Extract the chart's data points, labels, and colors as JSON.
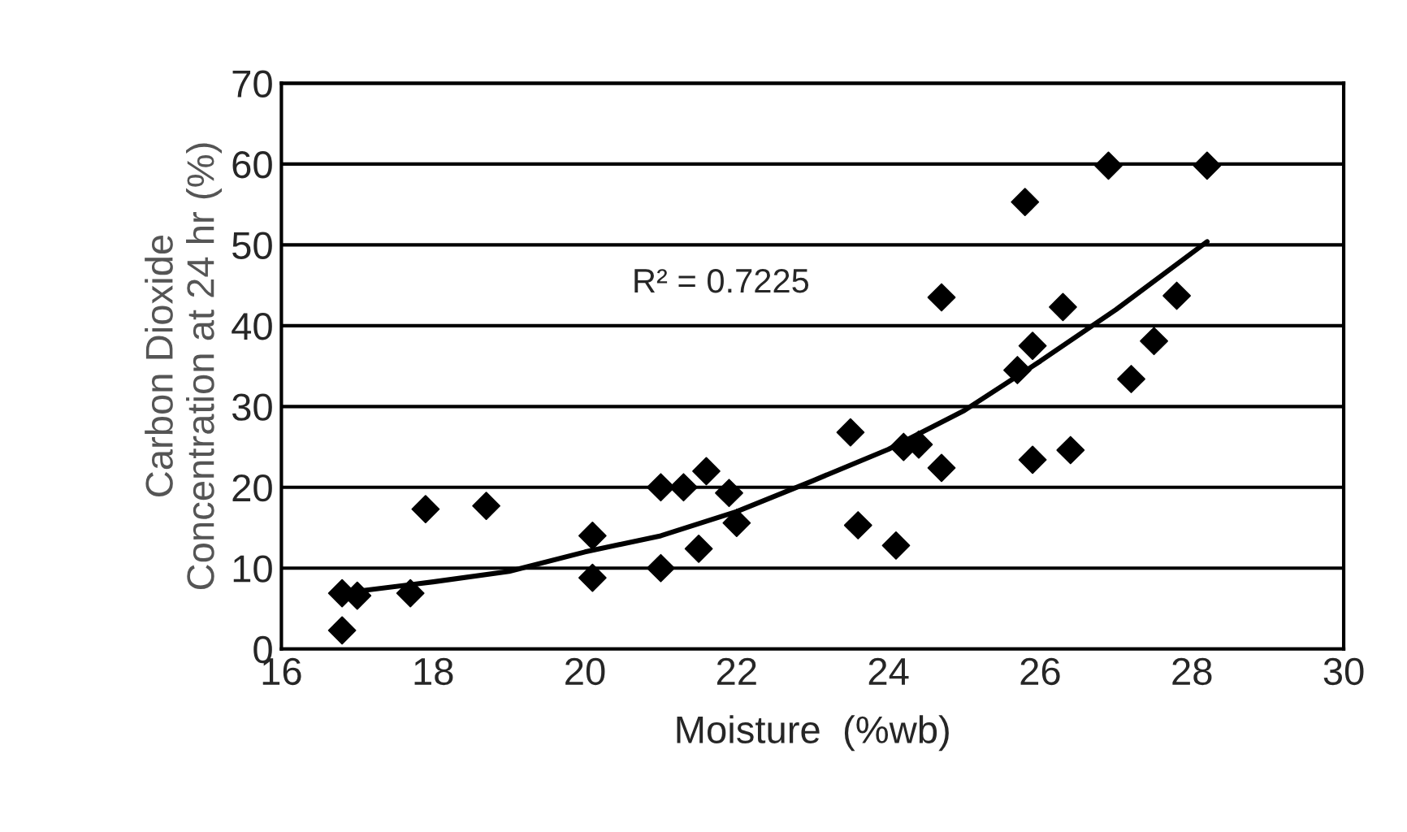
{
  "chart_data": {
    "type": "scatter",
    "xlabel": "Moisture  (%wb)",
    "ylabel": "Carbon Dioxide\nConcentration at 24 hr (%)",
    "xlim": [
      16,
      30
    ],
    "xticks": [
      16,
      18,
      20,
      22,
      24,
      26,
      28,
      30
    ],
    "ylim": [
      0,
      70
    ],
    "yticks": [
      0,
      10,
      20,
      30,
      40,
      50,
      60,
      70
    ],
    "grid": "y",
    "annotations": [
      "R² = 0.7225"
    ],
    "series": [
      {
        "marker": "diamond",
        "color": "#000000",
        "x": [
          16.8,
          16.8,
          17.0,
          17.7,
          17.9,
          18.7,
          20.1,
          20.1,
          21.0,
          21.3,
          21.0,
          21.5,
          21.6,
          21.9,
          22.0,
          23.5,
          23.6,
          24.1,
          24.2,
          24.4,
          24.7,
          24.7,
          25.7,
          25.9,
          25.8,
          25.9,
          26.3,
          26.4,
          26.9,
          27.2,
          27.5,
          27.8,
          28.2
        ],
        "values": [
          2.3,
          6.9,
          6.6,
          6.9,
          17.3,
          17.7,
          14.0,
          8.8,
          20.0,
          20.0,
          10.0,
          12.4,
          22.0,
          19.3,
          15.6,
          26.8,
          15.3,
          12.8,
          25.0,
          25.3,
          22.4,
          43.5,
          34.5,
          37.5,
          55.3,
          23.4,
          42.3,
          24.6,
          59.8,
          33.4,
          38.1,
          43.7,
          59.8
        ]
      },
      {
        "type": "line",
        "color": "#000000",
        "x": [
          16.8,
          18,
          19,
          20,
          21,
          22,
          23,
          24,
          25,
          26,
          27,
          28.2
        ],
        "values": [
          6.9,
          8.3,
          9.6,
          12.0,
          14.0,
          17.0,
          20.8,
          24.7,
          29.5,
          35.6,
          42.0,
          50.4
        ]
      }
    ]
  }
}
